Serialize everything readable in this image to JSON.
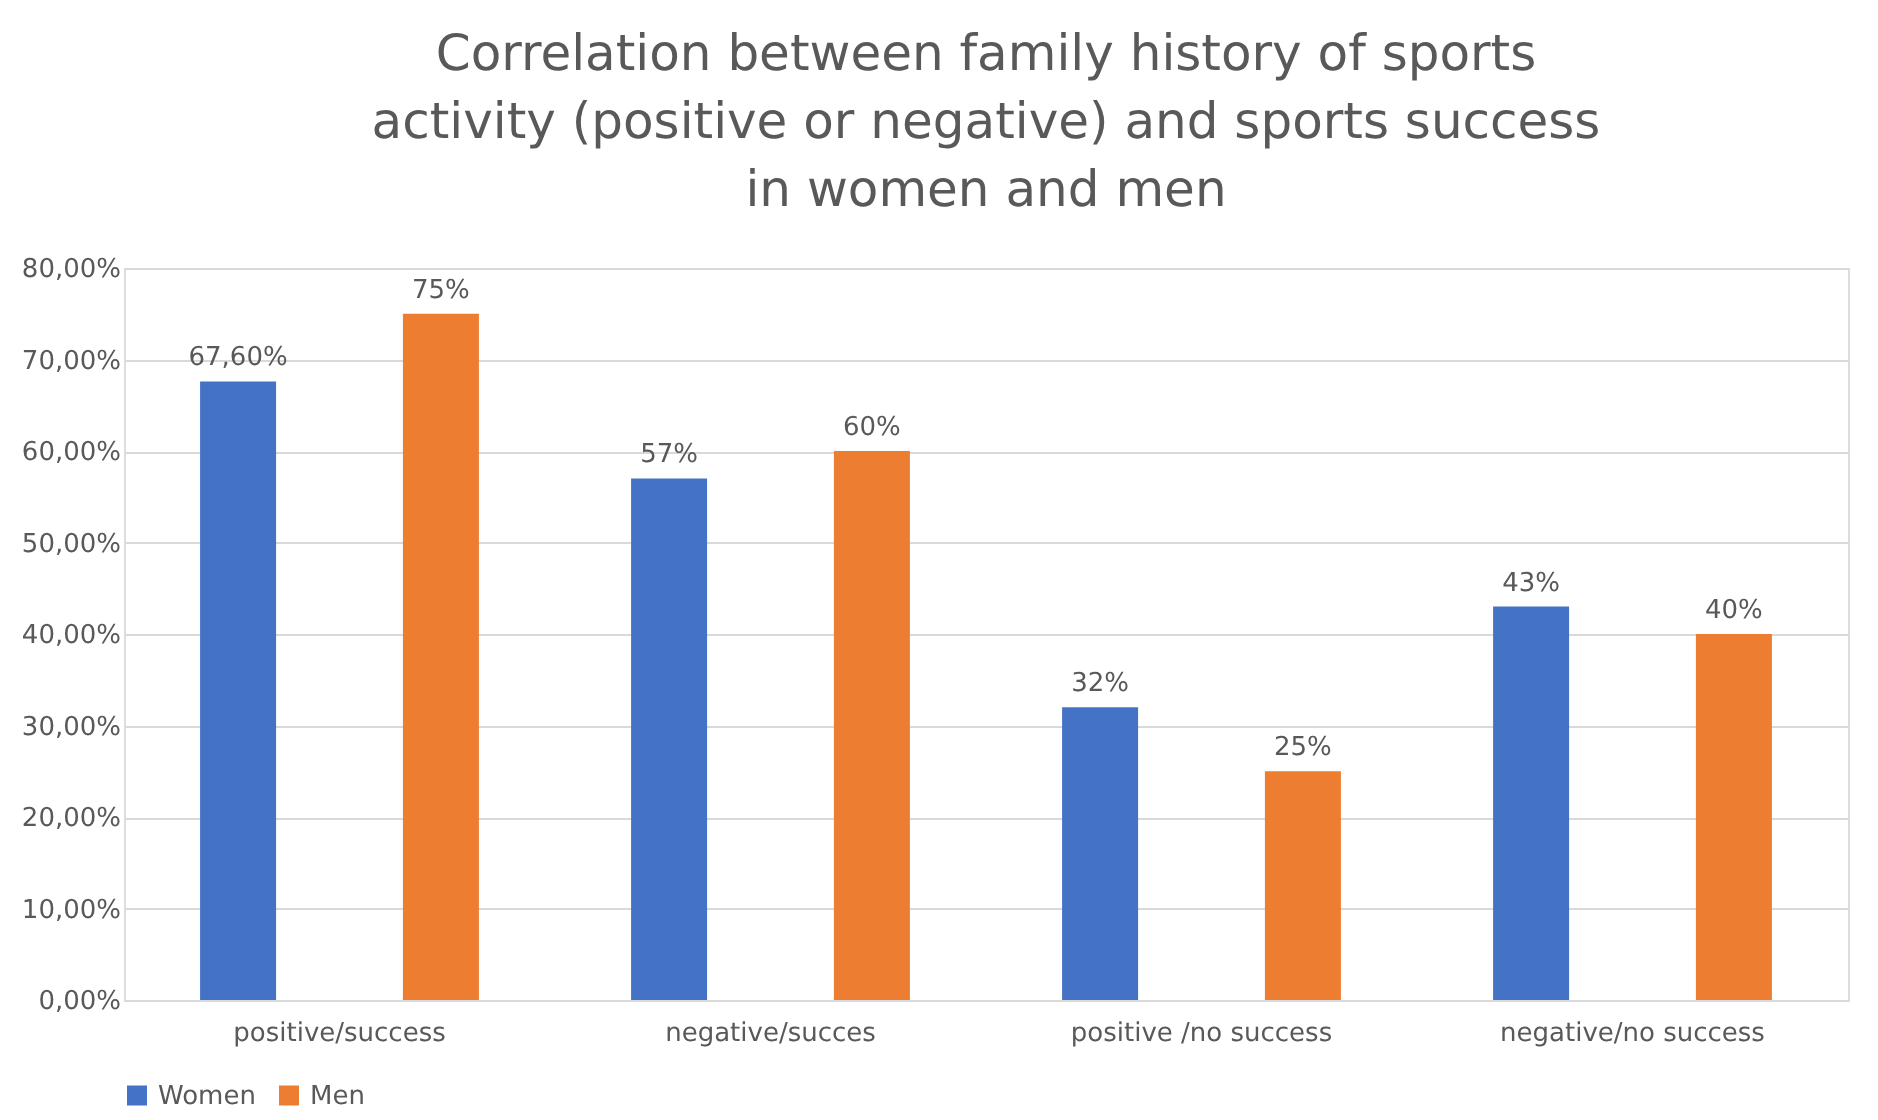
{
  "chart_data": {
    "type": "bar",
    "title": [
      "Correlation between family history of sports",
      "activity (positive or negative) and sports success",
      "in women and men"
    ],
    "categories": [
      "positive/success",
      "negative/succes",
      "positive /no success",
      "negative/no success"
    ],
    "series": [
      {
        "name": "Women",
        "color": "#4472c4",
        "values": [
          67.6,
          57,
          32,
          43
        ],
        "value_labels": [
          "67,60%",
          "57%",
          "32%",
          "43%"
        ]
      },
      {
        "name": "Men",
        "color": "#ed7d31",
        "values": [
          75,
          60,
          25,
          40
        ],
        "value_labels": [
          "75%",
          "60%",
          "25%",
          "40%"
        ]
      }
    ],
    "ylim": [
      0,
      80
    ],
    "yticks": [
      {
        "value": 0,
        "label": "0,00%"
      },
      {
        "value": 10,
        "label": "10,00%"
      },
      {
        "value": 20,
        "label": "20,00%"
      },
      {
        "value": 30,
        "label": "30,00%"
      },
      {
        "value": 40,
        "label": "40,00%"
      },
      {
        "value": 50,
        "label": "50,00%"
      },
      {
        "value": 60,
        "label": "60,00%"
      },
      {
        "value": 70,
        "label": "70,00%"
      },
      {
        "value": 80,
        "label": "80,00%"
      }
    ],
    "grid": "y",
    "legend": "bottom"
  }
}
